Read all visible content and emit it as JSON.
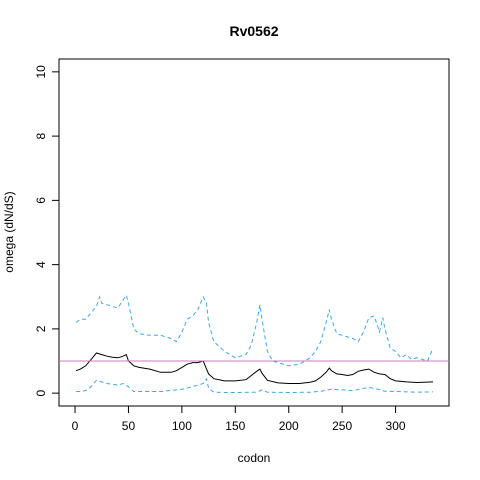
{
  "chart_data": {
    "type": "line",
    "title": "Rv0562",
    "xlabel": "codon",
    "ylabel": "omega (dN/dS)",
    "xlim": [
      -15,
      350
    ],
    "ylim": [
      -0.4,
      10.4
    ],
    "x_ticks": [
      0,
      50,
      100,
      150,
      200,
      250,
      300
    ],
    "y_ticks": [
      0,
      2,
      4,
      6,
      8,
      10
    ],
    "grid": false,
    "legend": "none",
    "reference_line": {
      "y": 1,
      "color": "#c77cbd"
    },
    "series": [
      {
        "style": "solid",
        "color": "#000000",
        "x": [
          1,
          5,
          10,
          15,
          20,
          25,
          30,
          35,
          40,
          45,
          48,
          50,
          55,
          60,
          70,
          80,
          90,
          95,
          100,
          105,
          110,
          115,
          120,
          125,
          130,
          140,
          150,
          160,
          165,
          170,
          173,
          175,
          180,
          190,
          200,
          210,
          220,
          225,
          230,
          235,
          238,
          240,
          245,
          250,
          255,
          260,
          265,
          270,
          275,
          280,
          285,
          290,
          295,
          300,
          310,
          320,
          335
        ],
        "y": [
          0.7,
          0.75,
          0.85,
          1.05,
          1.25,
          1.2,
          1.15,
          1.12,
          1.1,
          1.15,
          1.2,
          1.0,
          0.85,
          0.8,
          0.75,
          0.65,
          0.65,
          0.7,
          0.8,
          0.9,
          0.95,
          0.95,
          1.0,
          0.6,
          0.45,
          0.38,
          0.38,
          0.42,
          0.55,
          0.68,
          0.75,
          0.62,
          0.4,
          0.32,
          0.3,
          0.3,
          0.34,
          0.38,
          0.5,
          0.65,
          0.78,
          0.7,
          0.6,
          0.58,
          0.55,
          0.58,
          0.68,
          0.72,
          0.75,
          0.65,
          0.6,
          0.58,
          0.45,
          0.38,
          0.35,
          0.33,
          0.35
        ]
      },
      {
        "style": "dashed",
        "color": "#3fa7e0",
        "x": [
          1,
          5,
          10,
          15,
          20,
          23,
          25,
          30,
          35,
          40,
          45,
          48,
          50,
          55,
          60,
          70,
          80,
          90,
          95,
          100,
          105,
          110,
          115,
          120,
          123,
          125,
          130,
          140,
          150,
          160,
          165,
          170,
          173,
          175,
          180,
          185,
          190,
          200,
          210,
          220,
          225,
          230,
          235,
          238,
          240,
          245,
          250,
          255,
          260,
          265,
          270,
          275,
          280,
          285,
          288,
          290,
          295,
          300,
          305,
          310,
          315,
          320,
          330,
          335
        ],
        "y": [
          2.2,
          2.3,
          2.3,
          2.5,
          2.7,
          3.0,
          2.8,
          2.75,
          2.7,
          2.65,
          2.9,
          3.05,
          2.8,
          2.0,
          1.85,
          1.8,
          1.8,
          1.7,
          1.6,
          1.9,
          2.3,
          2.4,
          2.6,
          3.0,
          2.8,
          2.2,
          1.6,
          1.3,
          1.1,
          1.2,
          1.5,
          2.2,
          2.75,
          2.3,
          1.3,
          1.0,
          0.95,
          0.85,
          0.9,
          1.1,
          1.3,
          1.6,
          2.2,
          2.6,
          2.3,
          1.85,
          1.8,
          1.75,
          1.7,
          1.6,
          1.9,
          2.35,
          2.4,
          1.9,
          2.35,
          2.0,
          1.4,
          1.3,
          1.1,
          1.2,
          1.05,
          1.1,
          1.0,
          1.4
        ]
      },
      {
        "style": "dashed",
        "color": "#3fa7e0",
        "x": [
          1,
          5,
          10,
          15,
          20,
          25,
          30,
          40,
          45,
          50,
          55,
          60,
          80,
          100,
          110,
          115,
          120,
          123,
          125,
          130,
          140,
          150,
          170,
          175,
          180,
          200,
          220,
          230,
          240,
          250,
          260,
          275,
          280,
          290,
          300,
          320,
          335
        ],
        "y": [
          0.05,
          0.05,
          0.08,
          0.2,
          0.4,
          0.35,
          0.3,
          0.25,
          0.3,
          0.2,
          0.05,
          0.05,
          0.05,
          0.12,
          0.2,
          0.25,
          0.3,
          0.45,
          0.15,
          0.03,
          0.02,
          0.02,
          0.03,
          0.1,
          0.03,
          0.02,
          0.03,
          0.06,
          0.12,
          0.1,
          0.08,
          0.18,
          0.15,
          0.06,
          0.05,
          0.03,
          0.04
        ]
      }
    ]
  }
}
